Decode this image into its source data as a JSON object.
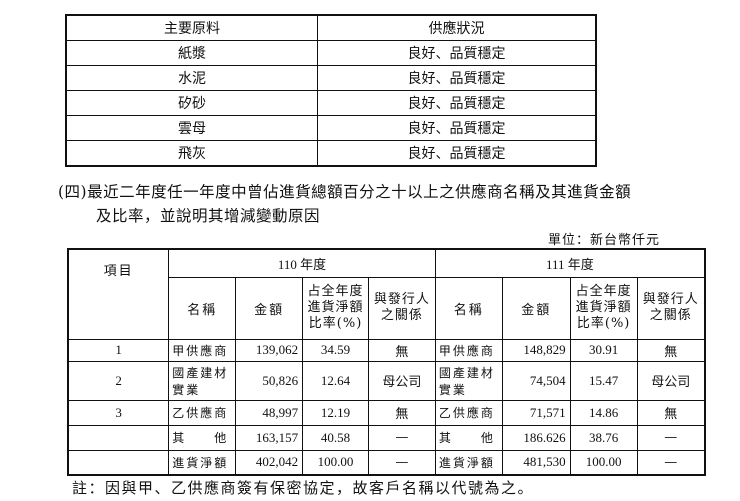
{
  "materials_table": {
    "headers": [
      "主要原料",
      "供應狀況"
    ],
    "rows": [
      [
        "紙漿",
        "良好、品質穩定"
      ],
      [
        "水泥",
        "良好、品質穩定"
      ],
      [
        "矽砂",
        "良好、品質穩定"
      ],
      [
        "雲母",
        "良好、品質穩定"
      ],
      [
        "飛灰",
        "良好、品質穩定"
      ]
    ]
  },
  "section": {
    "line1": "(四)最近二年度任一年度中曾佔進貨總額百分之十以上之供應商名稱及其進貨金額",
    "line2": "及比率，並說明其增減變動原因"
  },
  "unit": "單位：新台幣仟元",
  "supplier_table": {
    "item_header": "項目",
    "years": [
      "110 年度",
      "111 年度"
    ],
    "col_headers": [
      "名稱",
      "金額",
      "占全年度進貨淨額比率(%)",
      "與發行人之關係"
    ],
    "rows": [
      {
        "item": "1",
        "y110": [
          "甲供應商",
          "139,062",
          "34.59",
          "無"
        ],
        "y111": [
          "甲供應商",
          "148,829",
          "30.91",
          "無"
        ]
      },
      {
        "item": "2",
        "y110": [
          "國產建材實業",
          "50,826",
          "12.64",
          "母公司"
        ],
        "y111": [
          "國產建材實業",
          "74,504",
          "15.47",
          "母公司"
        ]
      },
      {
        "item": "3",
        "y110": [
          "乙供應商",
          "48,997",
          "12.19",
          "無"
        ],
        "y111": [
          "乙供應商",
          "71,571",
          "14.86",
          "無"
        ]
      },
      {
        "item": "",
        "y110": [
          "其　　他",
          "163,157",
          "40.58",
          "—"
        ],
        "y111": [
          "其　　他",
          "186.626",
          "38.76",
          "—"
        ]
      },
      {
        "item": "",
        "y110": [
          "進貨淨額",
          "402,042",
          "100.00",
          "—"
        ],
        "y111": [
          "進貨淨額",
          "481,530",
          "100.00",
          "—"
        ]
      }
    ]
  },
  "note": "註：因與甲、乙供應商簽有保密協定，故客戶名稱以代號為之。"
}
